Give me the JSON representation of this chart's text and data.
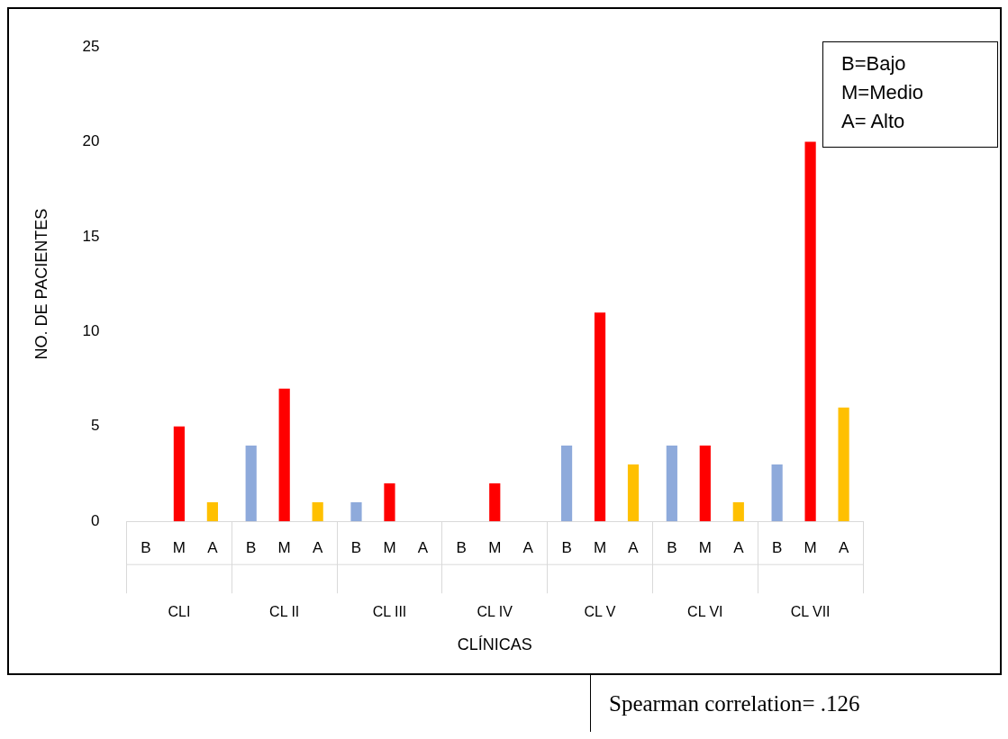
{
  "chart_data": {
    "type": "bar",
    "xlabel": "CLÍNICAS",
    "ylabel": "NO. DE PACIENTES",
    "categories": [
      "CLI",
      "CL II",
      "CL III",
      "CL IV",
      "CL V",
      "CL VI",
      "CL VII"
    ],
    "series": [
      {
        "name": "B",
        "color": "#8eaadb",
        "values": [
          0,
          4,
          1,
          0,
          4,
          4,
          3
        ]
      },
      {
        "name": "M",
        "color": "#ff0000",
        "values": [
          5,
          7,
          2,
          2,
          11,
          4,
          20
        ]
      },
      {
        "name": "A",
        "color": "#ffc000",
        "values": [
          1,
          1,
          0,
          0,
          3,
          1,
          6
        ]
      }
    ],
    "ylim": [
      0,
      25
    ],
    "yticks": [
      0,
      5,
      10,
      15,
      20,
      25
    ],
    "grid": false,
    "legend": false,
    "annotations": [
      "B=Bajo",
      "M=Medio",
      "A= Alto",
      "Spearman correlation= .126"
    ]
  }
}
